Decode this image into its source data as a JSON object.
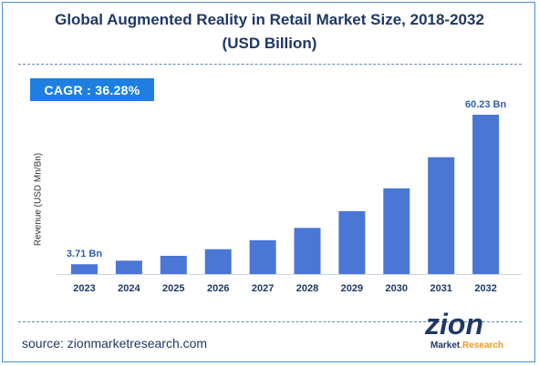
{
  "header": {
    "title_line1": "Global Augmented Reality in Retail Market Size, 2018-2032",
    "title_line2": "(USD Billion)"
  },
  "badge": {
    "cagr_text": "CAGR : 36.28%"
  },
  "footer": {
    "source": "source: zionmarketresearch.com"
  },
  "logo": {
    "wordmark": "zion",
    "sub_left": "Market",
    "sub_right": "Research"
  },
  "colors": {
    "bar": "#4a76d6",
    "title": "#1f3864",
    "badge": "#1e7fe0",
    "frame": "#4b8fd6",
    "label_blue": "#2f5fa8"
  },
  "chart_data": {
    "type": "bar",
    "title": "Global Augmented Reality in Retail Market Size, 2018-2032 (USD Billion)",
    "ylabel": "Revenue (USD Mn/Bn)",
    "xlabel": "",
    "categories": [
      "2023",
      "2024",
      "2025",
      "2026",
      "2027",
      "2028",
      "2029",
      "2030",
      "2031",
      "2032"
    ],
    "values": [
      3.71,
      5.06,
      6.89,
      9.39,
      12.8,
      17.45,
      23.78,
      32.4,
      44.16,
      60.23
    ],
    "data_labels": [
      {
        "index": 0,
        "text": "3.71 Bn"
      },
      {
        "index": 9,
        "text": "60.23 Bn"
      }
    ],
    "ylim": [
      0,
      60.23
    ],
    "grid": false,
    "legend": "none"
  }
}
